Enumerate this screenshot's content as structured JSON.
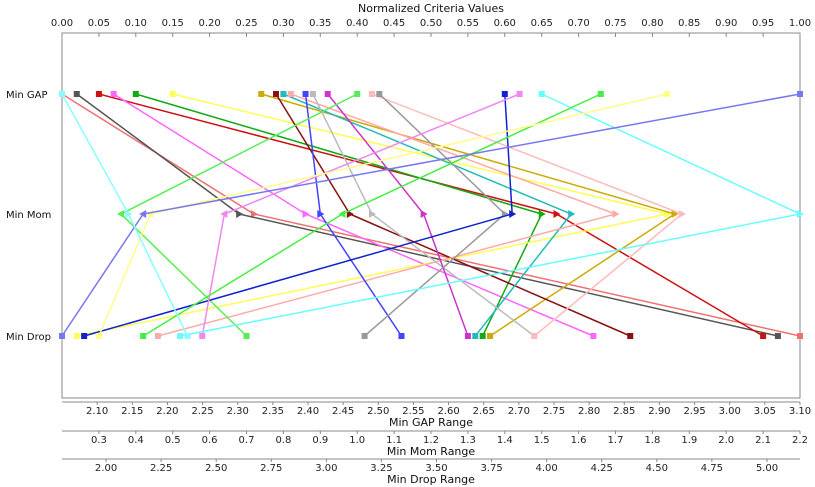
{
  "chart_data": {
    "type": "line",
    "title": "Normalized Criteria Values",
    "categories": [
      "Min GAP",
      "Min Mom",
      "Min Drop"
    ],
    "normalized_axis": {
      "min": 0,
      "max": 1,
      "ticks": [
        "0.00",
        "0.05",
        "0.10",
        "0.15",
        "0.20",
        "0.25",
        "0.30",
        "0.35",
        "0.40",
        "0.45",
        "0.50",
        "0.55",
        "0.60",
        "0.65",
        "0.70",
        "0.75",
        "0.80",
        "0.85",
        "0.90",
        "0.95",
        "1.00"
      ]
    },
    "range_axes": [
      {
        "label": "Min GAP Range",
        "min": 2.05,
        "max": 3.1,
        "ticks": [
          "2.10",
          "2.15",
          "2.20",
          "2.25",
          "2.30",
          "2.35",
          "2.40",
          "2.45",
          "2.50",
          "2.55",
          "2.60",
          "2.65",
          "2.70",
          "2.75",
          "2.80",
          "2.85",
          "2.90",
          "2.95",
          "3.00",
          "3.05",
          "3.10"
        ]
      },
      {
        "label": "Min Mom Range",
        "min": 0.2,
        "max": 2.2,
        "ticks": [
          "0.3",
          "0.4",
          "0.5",
          "0.6",
          "0.7",
          "0.8",
          "0.9",
          "1.0",
          "1.1",
          "1.2",
          "1.3",
          "1.4",
          "1.5",
          "1.6",
          "1.7",
          "1.8",
          "1.9",
          "2.0",
          "2.1",
          "2.2"
        ]
      },
      {
        "label": "Min Drop Range",
        "min": 1.8,
        "max": 5.15,
        "ticks": [
          "2.00",
          "2.25",
          "2.50",
          "2.75",
          "3.00",
          "3.25",
          "3.50",
          "3.75",
          "4.00",
          "4.25",
          "4.50",
          "4.75",
          "5.00"
        ]
      }
    ],
    "series": [
      {
        "color": "#f07070",
        "values": [
          0.0,
          0.26,
          1.0
        ]
      },
      {
        "color": "#555555",
        "values": [
          0.02,
          0.24,
          0.97
        ]
      },
      {
        "color": "#cc1111",
        "values": [
          0.05,
          0.67,
          0.95
        ]
      },
      {
        "color": "#ff66ff",
        "values": [
          0.07,
          0.33,
          0.72
        ]
      },
      {
        "color": "#11aa11",
        "values": [
          0.1,
          0.65,
          0.57
        ]
      },
      {
        "color": "#ffff55",
        "values": [
          0.15,
          0.82,
          0.02
        ]
      },
      {
        "color": "#ccaa00",
        "values": [
          0.27,
          0.83,
          0.58
        ]
      },
      {
        "color": "#881111",
        "values": [
          0.29,
          0.39,
          0.77
        ]
      },
      {
        "color": "#22bbbb",
        "values": [
          0.3,
          0.69,
          0.56
        ]
      },
      {
        "color": "#ffaaaa",
        "values": [
          0.31,
          0.75,
          0.13
        ]
      },
      {
        "color": "#4444ff",
        "values": [
          0.33,
          0.35,
          0.46
        ]
      },
      {
        "color": "#bbbbbb",
        "values": [
          0.34,
          0.42,
          0.64
        ]
      },
      {
        "color": "#cc33cc",
        "values": [
          0.36,
          0.49,
          0.55
        ]
      },
      {
        "color": "#55ee55",
        "values": [
          0.4,
          0.08,
          0.25
        ]
      },
      {
        "color": "#ffbbbb",
        "values": [
          0.42,
          0.84,
          0.64
        ]
      },
      {
        "color": "#999999",
        "values": [
          0.43,
          0.6,
          0.41
        ]
      },
      {
        "color": "#1122cc",
        "values": [
          0.6,
          0.61,
          0.03
        ]
      },
      {
        "color": "#ee88ee",
        "values": [
          0.62,
          0.22,
          0.19
        ]
      },
      {
        "color": "#66ffff",
        "values": [
          0.65,
          1.0,
          0.16
        ]
      },
      {
        "color": "#44ee44",
        "values": [
          0.73,
          0.38,
          0.11
        ]
      },
      {
        "color": "#ffff88",
        "values": [
          0.82,
          0.12,
          0.05
        ]
      },
      {
        "color": "#7777ee",
        "values": [
          1.0,
          0.11,
          0.0
        ]
      },
      {
        "color": "#88ffff",
        "values": [
          0.0,
          0.09,
          0.17
        ]
      }
    ],
    "grid": false,
    "legend": "none"
  }
}
